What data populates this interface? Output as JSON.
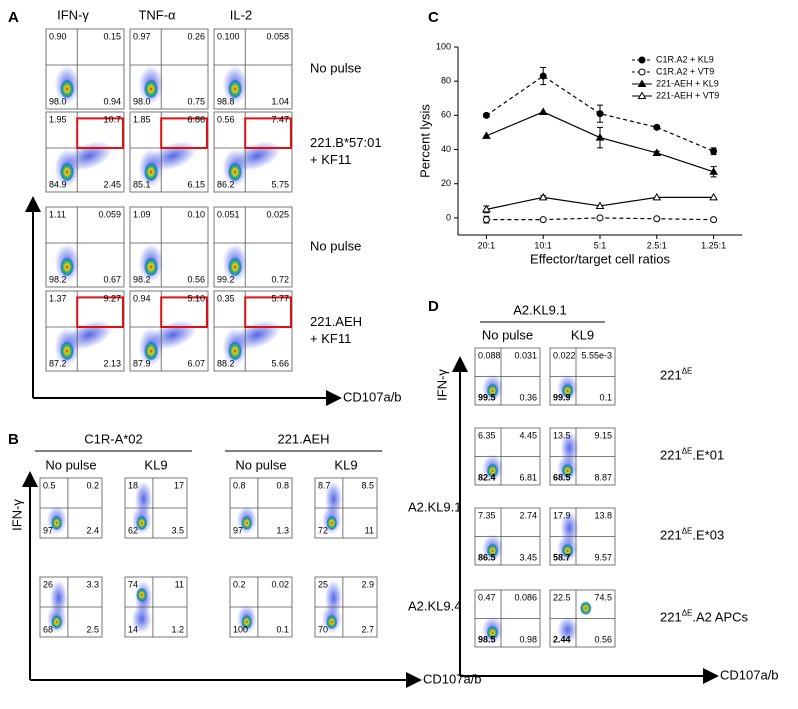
{
  "panel_a": {
    "letter": "A",
    "columns": [
      "IFN-γ",
      "TNF-α",
      "IL-2"
    ],
    "x_label": "CD107a/b",
    "rows": [
      {
        "label": [
          "No pulse"
        ],
        "plots": [
          [
            "0.90",
            "0.15",
            "98.0",
            "0.94"
          ],
          [
            "0.97",
            "0.26",
            "98.0",
            "0.75"
          ],
          [
            "0.100",
            "0.058",
            "98.8",
            "1.04"
          ]
        ]
      },
      {
        "label": [
          "221.B*57:01",
          "+ KF11"
        ],
        "plots": [
          [
            "1.95",
            "10.7",
            "84.9",
            "2.45"
          ],
          [
            "1.85",
            "6.86",
            "85.1",
            "6.15"
          ],
          [
            "0.56",
            "7.47",
            "86.2",
            "5.75"
          ]
        ]
      },
      {
        "label": [
          "No pulse"
        ],
        "plots": [
          [
            "1.11",
            "0.059",
            "98.2",
            "0.67"
          ],
          [
            "1.09",
            "0.10",
            "98.2",
            "0.56"
          ],
          [
            "0.051",
            "0.025",
            "99.2",
            "0.72"
          ]
        ]
      },
      {
        "label": [
          "221.AEH",
          "+ KF11"
        ],
        "plots": [
          [
            "1.37",
            "9.27",
            "87.2",
            "2.13"
          ],
          [
            "0.94",
            "5.10",
            "87.9",
            "6.07"
          ],
          [
            "0.35",
            "5.77",
            "88.2",
            "5.66"
          ]
        ]
      }
    ]
  },
  "panel_b": {
    "letter": "B",
    "y_label": "IFN-γ",
    "x_label": "CD107a/b",
    "groups": [
      {
        "name": "C1R-A*02",
        "columns": [
          "No pulse",
          "KL9"
        ]
      },
      {
        "name": "221.AEH",
        "columns": [
          "No pulse",
          "KL9"
        ]
      }
    ],
    "rows": [
      {
        "label": "A2.KL9.1",
        "plots": [
          [
            "0.5",
            "0.2",
            "97",
            "2.4"
          ],
          [
            "18",
            "17",
            "62",
            "3.5"
          ],
          [
            "0.8",
            "0.8",
            "97",
            "1.3"
          ],
          [
            "8.7",
            "8.5",
            "72",
            "11"
          ]
        ]
      },
      {
        "label": "A2.KL9.4",
        "plots": [
          [
            "26",
            "3.3",
            "68",
            "2.5"
          ],
          [
            "74",
            "11",
            "14",
            "1.2"
          ],
          [
            "0.2",
            "0.02",
            "100",
            "0.1"
          ],
          [
            "25",
            "2.9",
            "70",
            "2.7"
          ]
        ]
      }
    ]
  },
  "panel_d": {
    "letter": "D",
    "header": "A2.KL9.1",
    "columns": [
      "No pulse",
      "KL9"
    ],
    "y_label": "IFN-γ",
    "x_label": "CD107a/b",
    "rows": [
      {
        "label": {
          "base": "221",
          "sup": "ΔE"
        },
        "plots": [
          [
            "0.088",
            "0.031",
            "99.5",
            "0.36"
          ],
          [
            "0.022",
            "5.55e-3",
            "99.9",
            "0.1"
          ]
        ]
      },
      {
        "label": {
          "base": "221",
          "sup": "ΔE",
          "suffix": ".E*01"
        },
        "plots": [
          [
            "6.35",
            "4.45",
            "82.4",
            "6.81"
          ],
          [
            "13.5",
            "9.15",
            "68.5",
            "8.87"
          ]
        ]
      },
      {
        "label": {
          "base": "221",
          "sup": "ΔE",
          "suffix": ".E*03"
        },
        "plots": [
          [
            "7.35",
            "2.74",
            "86.5",
            "3.45"
          ],
          [
            "17.9",
            "13.8",
            "58.7",
            "9.57"
          ]
        ]
      },
      {
        "label": {
          "base": "221",
          "sup": "ΔE",
          "suffix": ".A2 APCs"
        },
        "plots": [
          [
            "0.47",
            "0.086",
            "98.5",
            "0.98"
          ],
          [
            "22.5",
            "74.5",
            "2.44",
            "0.56"
          ]
        ]
      }
    ]
  },
  "chart_data": {
    "type": "line",
    "letter": "C",
    "y_label": "Percent lysis",
    "x_label": "Effector/target cell ratios",
    "categories": [
      "20:1",
      "10:1",
      "5:1",
      "2.5:1",
      "1.25:1"
    ],
    "ylim": [
      -10,
      100
    ],
    "yticks": [
      0,
      20,
      40,
      60,
      80,
      100
    ],
    "series": [
      {
        "name": "C1R.A2 + KL9",
        "color": "#000000",
        "marker": "circle",
        "dashed": true,
        "values": [
          60,
          83,
          61,
          53,
          39
        ],
        "errors": [
          1,
          5,
          5,
          1,
          2
        ]
      },
      {
        "name": "C1R.A2 + VT9",
        "color": "#000000",
        "marker": "circle-open",
        "dashed": true,
        "values": [
          -1,
          -1,
          0,
          -0.5,
          -1
        ],
        "errors": [
          2,
          0,
          0,
          0,
          0
        ]
      },
      {
        "name": "221-AEH + KL9",
        "color": "#000000",
        "marker": "triangle",
        "dashed": false,
        "values": [
          48,
          62,
          47,
          38,
          27
        ],
        "errors": [
          0,
          0,
          6,
          1,
          3
        ]
      },
      {
        "name": "221-AEH + VT9",
        "color": "#000000",
        "marker": "triangle-open",
        "dashed": false,
        "values": [
          5,
          12,
          7,
          12,
          12
        ],
        "errors": [
          2,
          1,
          0,
          0,
          0
        ]
      }
    ]
  }
}
